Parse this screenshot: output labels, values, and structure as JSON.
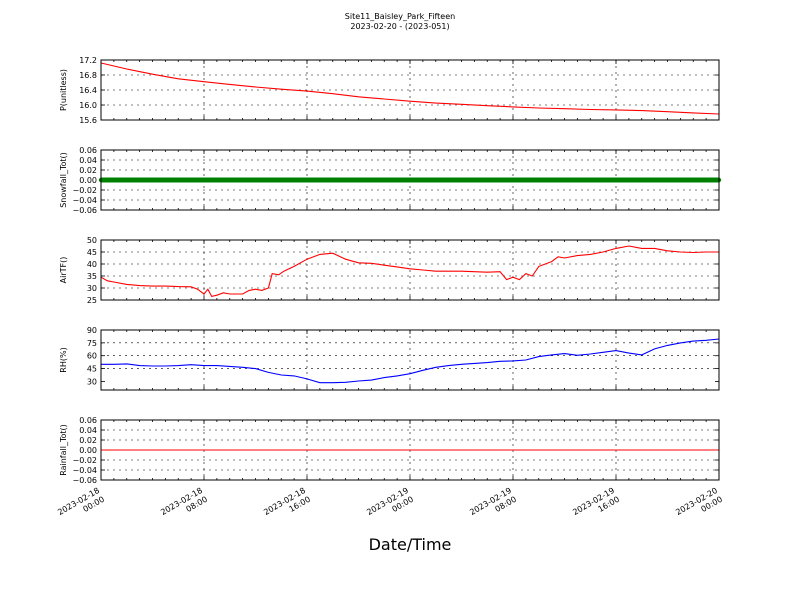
{
  "chart_data": {
    "type": "line",
    "title": "Site11_Baisley_Park_Fifteen",
    "subtitle": "2023-02-20 - (2023-051)",
    "xlabel": "Date/Time",
    "grid": true,
    "x_range": [
      "2023-02-18 00:00",
      "2023-02-20 00:00"
    ],
    "x_tick_labels": [
      [
        "2023-02-18",
        "00:00"
      ],
      [
        "2023-02-18",
        "08:00"
      ],
      [
        "2023-02-18",
        "16:00"
      ],
      [
        "2023-02-19",
        "00:00"
      ],
      [
        "2023-02-19",
        "08:00"
      ],
      [
        "2023-02-19",
        "16:00"
      ],
      [
        "2023-02-20",
        "00:00"
      ]
    ],
    "panels": [
      {
        "ylabel": "P(unitless)",
        "ylim": [
          15.6,
          17.2
        ],
        "yticks": [
          "17.2",
          "16.8",
          "16.4",
          "16.0",
          "15.6"
        ],
        "ytick_values": [
          17.2,
          16.8,
          16.4,
          16.0,
          15.6
        ],
        "color": "#ff0000",
        "x_hours": [
          0,
          2,
          4,
          6,
          8,
          10,
          12,
          14,
          16,
          18,
          20,
          22,
          24,
          26,
          28,
          30,
          32,
          34,
          36,
          38,
          40,
          42,
          44,
          46,
          48
        ],
        "values": [
          17.12,
          16.96,
          16.82,
          16.7,
          16.62,
          16.55,
          16.48,
          16.42,
          16.37,
          16.3,
          16.22,
          16.16,
          16.1,
          16.05,
          16.02,
          15.98,
          15.95,
          15.92,
          15.9,
          15.88,
          15.87,
          15.85,
          15.82,
          15.79,
          15.76
        ]
      },
      {
        "ylabel": "Snowfall_Tot()",
        "ylim": [
          -0.06,
          0.06
        ],
        "yticks": [
          "0.06",
          "0.04",
          "0.02",
          "0.00",
          "−0.02",
          "−0.04",
          "−0.06"
        ],
        "ytick_values": [
          0.06,
          0.04,
          0.02,
          0.0,
          -0.02,
          -0.04,
          -0.06
        ],
        "color": "#008000",
        "style": "markers",
        "x_hours": [
          0,
          48
        ],
        "values": [
          0.0,
          0.0
        ]
      },
      {
        "ylabel": "AirTF()",
        "ylim": [
          25,
          50
        ],
        "yticks": [
          "50",
          "45",
          "40",
          "35",
          "30",
          "25"
        ],
        "ytick_values": [
          50,
          45,
          40,
          35,
          30,
          25
        ],
        "color": "#ff0000",
        "x_hours": [
          0,
          0.5,
          1,
          2,
          3,
          4,
          5,
          6,
          7,
          7.5,
          8,
          8.3,
          8.6,
          9,
          9.5,
          10,
          11,
          11.5,
          12,
          12.5,
          13,
          13.3,
          13.8,
          14.2,
          15,
          16,
          17,
          18,
          19,
          20,
          21,
          22,
          23,
          24,
          25,
          26,
          27,
          28,
          29,
          30,
          31,
          31.5,
          32,
          32.5,
          33,
          33.5,
          34,
          35,
          35.5,
          36,
          37,
          38,
          39,
          40,
          41,
          42,
          43,
          44,
          45,
          46,
          47,
          48
        ],
        "values": [
          34.5,
          33,
          32.5,
          31.5,
          31,
          30.8,
          30.8,
          30.6,
          30.5,
          29.5,
          27.5,
          29.5,
          26.5,
          27,
          28,
          27.5,
          27.5,
          29,
          29.5,
          29,
          30,
          36,
          35.5,
          37,
          39,
          42,
          44,
          44.5,
          42,
          40.5,
          40.3,
          39.5,
          38.8,
          38,
          37.5,
          37,
          37,
          37,
          36.8,
          36.6,
          36.8,
          33.5,
          34.5,
          33.5,
          36,
          35,
          39,
          41,
          43,
          42.5,
          43.5,
          44,
          45,
          46.5,
          47.5,
          46.5,
          46.5,
          45.5,
          45,
          44.8,
          45,
          45
        ]
      },
      {
        "ylabel": "RH(%)",
        "ylim": [
          20,
          90
        ],
        "yticks": [
          "90",
          "75",
          "60",
          "45",
          "30"
        ],
        "ytick_values": [
          90,
          75,
          60,
          45,
          30
        ],
        "color": "#0000ff",
        "x_hours": [
          0,
          1,
          2,
          3,
          4,
          5,
          6,
          7,
          8,
          9,
          10,
          11,
          12,
          13,
          14,
          15,
          16,
          17,
          18,
          19,
          20,
          21,
          22,
          23,
          24,
          25,
          26,
          27,
          28,
          29,
          30,
          31,
          32,
          33,
          34,
          35,
          36,
          37,
          38,
          39,
          40,
          41,
          42,
          43,
          44,
          45,
          46,
          47,
          48
        ],
        "values": [
          50,
          50,
          50.5,
          48.5,
          48,
          48,
          48.5,
          49.5,
          48.5,
          48.5,
          47.5,
          46.5,
          45,
          40.5,
          37.5,
          36.5,
          33,
          28.5,
          28.5,
          29,
          30.5,
          31.5,
          34.5,
          36.5,
          39,
          43,
          46.5,
          48.5,
          50,
          51,
          52,
          53.5,
          54,
          55,
          59,
          61,
          62.5,
          60.5,
          62,
          64,
          66,
          63,
          61,
          68,
          72,
          75,
          77,
          78,
          79.5
        ]
      },
      {
        "ylabel": "Rainfall_Tot()",
        "ylim": [
          -0.06,
          0.06
        ],
        "yticks": [
          "0.06",
          "0.04",
          "0.02",
          "0.00",
          "−0.02",
          "−0.04",
          "−0.06"
        ],
        "ytick_values": [
          0.06,
          0.04,
          0.02,
          0.0,
          -0.02,
          -0.04,
          -0.06
        ],
        "color": "#ff0000",
        "x_hours": [
          0,
          48
        ],
        "values": [
          0.0,
          0.0
        ]
      }
    ]
  }
}
